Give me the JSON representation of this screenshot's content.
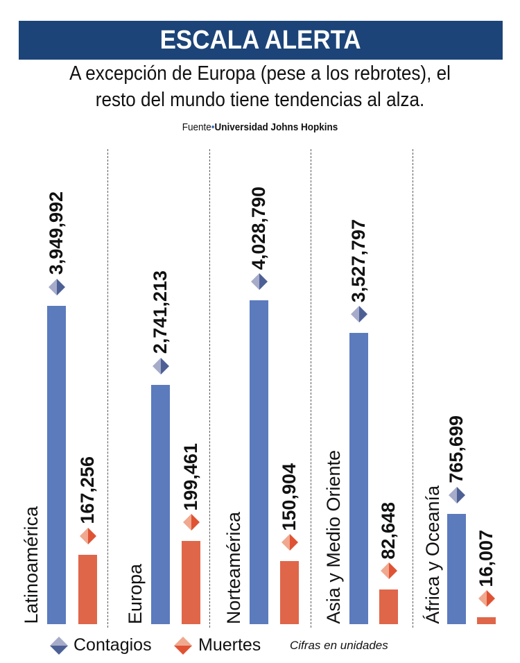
{
  "header": {
    "title": "ESCALA ALERTA",
    "subtitle_line1": "A excepción de Europa (pese a los rebrotes), el",
    "subtitle_line2": "resto del mundo tiene tendencias al alza.",
    "source_prefix": "Fuente",
    "source_name": "Universidad Johns Hopkins"
  },
  "chart_data": {
    "type": "bar",
    "categories": [
      "Latinoamérica",
      "Europa",
      "Norteamérica",
      "Asia y Medio Oriente",
      "África y Oceanía"
    ],
    "series": [
      {
        "name": "Contagios",
        "color": "#5b7bbd",
        "values": [
          3949992,
          2741213,
          4028790,
          3527797,
          765699
        ],
        "labels": [
          "3,949,992",
          "2,741,213",
          "4,028,790",
          "3,527,797",
          "765,699"
        ]
      },
      {
        "name": "Muertes",
        "color": "#e0664a",
        "values": [
          167256,
          199461,
          150904,
          82648,
          16007
        ],
        "labels": [
          "167,256",
          "199,461",
          "150,904",
          "82,648",
          "16,007"
        ]
      }
    ],
    "legend": "bottom",
    "note": "Cifras en unidades",
    "grid": false
  }
}
